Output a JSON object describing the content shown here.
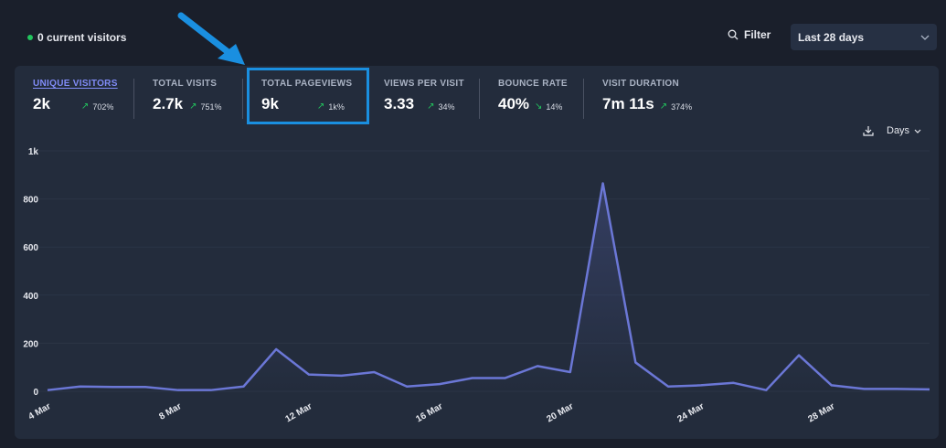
{
  "header": {
    "current_visitors": "0 current visitors",
    "filter_label": "Filter",
    "period_label": "Last 28 days"
  },
  "metrics": [
    {
      "label": "UNIQUE VISITORS",
      "value": "2k",
      "change": "702%",
      "direction": "up",
      "active": true
    },
    {
      "label": "TOTAL VISITS",
      "value": "2.7k",
      "change": "751%",
      "direction": "up"
    },
    {
      "label": "TOTAL PAGEVIEWS",
      "value": "9k",
      "change": "1k%",
      "direction": "up"
    },
    {
      "label": "VIEWS PER VISIT",
      "value": "3.33",
      "change": "34%",
      "direction": "up"
    },
    {
      "label": "BOUNCE RATE",
      "value": "40%",
      "change": "14%",
      "direction": "down"
    },
    {
      "label": "VISIT DURATION",
      "value": "7m 11s",
      "change": "374%",
      "direction": "up"
    }
  ],
  "interval_label": "Days",
  "colors": {
    "line": "#6b77d6",
    "positive": "#22c55e",
    "highlight": "#1a8fe0",
    "active_metric": "#818cf8"
  },
  "chart_data": {
    "type": "area",
    "x": [
      "4 Mar",
      "5 Mar",
      "6 Mar",
      "7 Mar",
      "8 Mar",
      "9 Mar",
      "10 Mar",
      "11 Mar",
      "12 Mar",
      "13 Mar",
      "14 Mar",
      "15 Mar",
      "16 Mar",
      "17 Mar",
      "18 Mar",
      "19 Mar",
      "20 Mar",
      "21 Mar",
      "22 Mar",
      "23 Mar",
      "24 Mar",
      "25 Mar",
      "26 Mar",
      "27 Mar",
      "28 Mar",
      "29 Mar",
      "30 Mar",
      "31 Mar"
    ],
    "values": [
      5,
      20,
      18,
      18,
      5,
      5,
      20,
      175,
      70,
      65,
      80,
      20,
      30,
      55,
      55,
      105,
      80,
      865,
      120,
      20,
      25,
      35,
      5,
      150,
      25,
      10,
      10,
      8
    ],
    "tick_labels_x": [
      "4 Mar",
      "8 Mar",
      "12 Mar",
      "16 Mar",
      "20 Mar",
      "24 Mar",
      "28 Mar"
    ],
    "tick_labels_y": [
      "0",
      "200",
      "400",
      "600",
      "800",
      "1k"
    ],
    "ylim": [
      0,
      1000
    ],
    "grid": true
  }
}
